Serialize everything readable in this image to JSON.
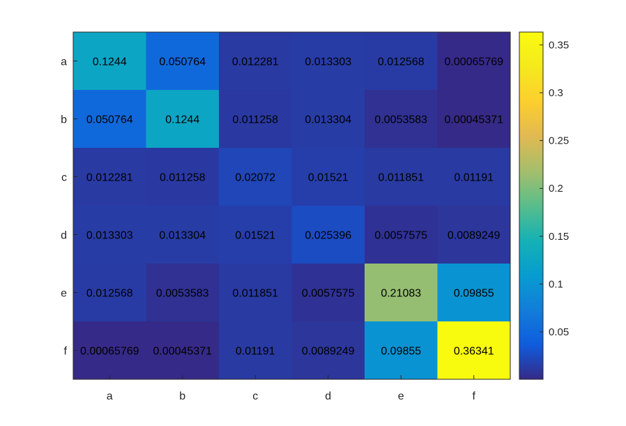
{
  "chart_data": {
    "type": "heatmap",
    "row_labels": [
      "a",
      "b",
      "c",
      "d",
      "e",
      "f"
    ],
    "col_labels": [
      "a",
      "b",
      "c",
      "d",
      "e",
      "f"
    ],
    "values": [
      [
        0.1244,
        0.050764,
        0.012281,
        0.013303,
        0.012568,
        0.00065769
      ],
      [
        0.050764,
        0.1244,
        0.011258,
        0.013304,
        0.0053583,
        0.00045371
      ],
      [
        0.012281,
        0.011258,
        0.02072,
        0.01521,
        0.011851,
        0.01191
      ],
      [
        0.013303,
        0.013304,
        0.01521,
        0.025396,
        0.0057575,
        0.0089249
      ],
      [
        0.012568,
        0.0053583,
        0.011851,
        0.0057575,
        0.21083,
        0.09855
      ],
      [
        0.00065769,
        0.00045371,
        0.01191,
        0.0089249,
        0.09855,
        0.36341
      ]
    ],
    "cell_labels": [
      [
        "0.1244",
        "0.050764",
        "0.012281",
        "0.013303",
        "0.012568",
        "0.00065769"
      ],
      [
        "0.050764",
        "0.1244",
        "0.011258",
        "0.013304",
        "0.0053583",
        "0.00045371"
      ],
      [
        "0.012281",
        "0.011258",
        "0.02072",
        "0.01521",
        "0.011851",
        "0.01191"
      ],
      [
        "0.013303",
        "0.013304",
        "0.01521",
        "0.025396",
        "0.0057575",
        "0.0089249"
      ],
      [
        "0.012568",
        "0.0053583",
        "0.011851",
        "0.0057575",
        "0.21083",
        "0.09855"
      ],
      [
        "0.00065769",
        "0.00045371",
        "0.01191",
        "0.0089249",
        "0.09855",
        "0.36341"
      ]
    ],
    "colormap": "parula",
    "clim": [
      0.00045371,
      0.36341
    ],
    "colorbar_ticks": [
      0.05,
      0.1,
      0.15,
      0.2,
      0.25,
      0.3,
      0.35
    ],
    "colorbar_tick_labels": [
      "0.05",
      "0.1",
      "0.15",
      "0.2",
      "0.25",
      "0.3",
      "0.35"
    ],
    "title": "",
    "xlabel": "",
    "ylabel": "",
    "grid": false,
    "legend": "colorbar-right"
  }
}
